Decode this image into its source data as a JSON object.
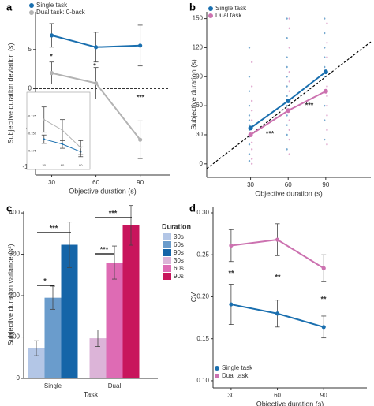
{
  "chart_data": [
    {
      "type": "line",
      "panel": "a",
      "xlabel": "Objective duration (s)",
      "ylabel": "Subjective duration deviation (s)",
      "x": [
        30,
        60,
        90
      ],
      "xlim": [
        19,
        110
      ],
      "ylim": [
        -11,
        9.8
      ],
      "xticks": [
        30,
        60,
        90
      ],
      "yticks": [
        -10,
        -5,
        0,
        5
      ],
      "hline": 0,
      "legend": "top-left",
      "series": [
        {
          "name": "Single task",
          "color": "#1a6faf",
          "values": [
            6.8,
            5.3,
            5.5
          ],
          "errors": [
            1.5,
            1.9,
            2.6
          ]
        },
        {
          "name": "Dual task: 0-back",
          "color": "#b3b3b3",
          "values": [
            2.0,
            0.7,
            -6.5
          ],
          "errors": [
            1.4,
            2.0,
            2.4
          ]
        }
      ],
      "annotations": [
        "*",
        "*",
        "***"
      ],
      "inset": {
        "x": [
          30,
          60,
          90
        ],
        "xlim": [
          20,
          100
        ],
        "ylim": [
          -0.19,
          -0.1
        ],
        "xticks": [
          30,
          60,
          90
        ],
        "yticks": [
          {
            "value": -0.125,
            "label": "-0.125"
          },
          {
            "value": -0.15,
            "label": "-0.150"
          },
          {
            "value": -0.175,
            "label": "-0.175"
          }
        ],
        "series": [
          {
            "color": "#1a6faf",
            "values": [
              -0.158,
              -0.165,
              -0.176
            ],
            "errors": [
              0.006,
              0.006,
              0.007
            ]
          },
          {
            "color": "#b3b3b3",
            "values": [
              -0.13,
              -0.145,
              -0.17
            ],
            "errors": [
              0.018,
              0.015,
              0.01
            ]
          }
        ]
      }
    },
    {
      "type": "scatter",
      "panel": "b",
      "xlabel": "Objective duration (s)",
      "ylabel": "Subjective duration (s)",
      "x": [
        30,
        60,
        90
      ],
      "xlim": [
        -5,
        126
      ],
      "ylim": [
        -14,
        157
      ],
      "xticks": [
        30,
        60,
        90
      ],
      "yticks": [
        0,
        30,
        60,
        90,
        120,
        150
      ],
      "legend": "top-left",
      "series": [
        {
          "name": "Single task",
          "color": "#1a6faf",
          "values": [
            37,
            65,
            95
          ],
          "points": {
            "x": [
              29,
              29,
              29,
              29,
              29,
              29,
              29,
              29,
              29,
              29,
              29,
              29,
              59,
              59,
              59,
              59,
              59,
              59,
              59,
              59,
              59,
              59,
              59,
              59,
              89,
              89,
              89,
              89,
              89,
              89,
              89,
              89,
              89,
              89
            ],
            "y": [
              3,
              10,
              20,
              28,
              35,
              40,
              45,
              50,
              60,
              75,
              90,
              120,
              15,
              30,
              40,
              50,
              60,
              70,
              80,
              90,
              100,
              110,
              130,
              150,
              25,
              45,
              60,
              75,
              90,
              100,
              110,
              120,
              135,
              150
            ]
          }
        },
        {
          "name": "Dual task",
          "color": "#cc72b0",
          "values": [
            30,
            55,
            75
          ],
          "points": {
            "x": [
              31,
              31,
              31,
              31,
              31,
              31,
              31,
              31,
              31,
              31,
              31,
              61,
              61,
              61,
              61,
              61,
              61,
              61,
              61,
              61,
              61,
              61,
              61,
              91,
              91,
              91,
              91,
              91,
              91,
              91,
              91,
              91,
              91
            ],
            "y": [
              0,
              5,
              15,
              22,
              30,
              38,
              45,
              55,
              65,
              80,
              105,
              10,
              25,
              35,
              45,
              55,
              65,
              75,
              85,
              95,
              120,
              140,
              150,
              20,
              35,
              50,
              60,
              70,
              80,
              95,
              110,
              125,
              145
            ]
          }
        }
      ],
      "annotations": [
        "***",
        "***"
      ]
    },
    {
      "type": "bar",
      "panel": "c",
      "xlabel": "Task",
      "ylabel": "Subjective duration variance (s²)",
      "categories": [
        "Single",
        "Dual"
      ],
      "ylim": [
        0,
        404
      ],
      "yticks": [
        0,
        100,
        200,
        300,
        400
      ],
      "legend_title": "Duration",
      "series": [
        {
          "name": "30s",
          "color": "#b3c6e6",
          "values": [
            73,
            null
          ],
          "errors": [
            18,
            null
          ]
        },
        {
          "name": "60s",
          "color": "#6a9ccc",
          "values": [
            195,
            null
          ],
          "errors": [
            28,
            null
          ]
        },
        {
          "name": "90s",
          "color": "#1565a8",
          "values": [
            323,
            null
          ],
          "errors": [
            55,
            null
          ]
        },
        {
          "name": "30s",
          "color": "#dcb4d8",
          "values": [
            null,
            97
          ],
          "errors": [
            null,
            20
          ]
        },
        {
          "name": "60s",
          "color": "#de6bb4",
          "values": [
            null,
            280
          ],
          "errors": [
            null,
            40
          ]
        },
        {
          "name": "90s",
          "color": "#c8155c",
          "values": [
            null,
            370
          ],
          "errors": [
            null,
            48
          ]
        }
      ],
      "annotations": [
        "*",
        "***",
        "***",
        "***"
      ]
    },
    {
      "type": "line",
      "panel": "d",
      "xlabel": "Objective duration (s)",
      "ylabel": "CV",
      "x": [
        30,
        60,
        90
      ],
      "xlim": [
        18.3,
        118
      ],
      "ylim": [
        0.0915,
        0.3075
      ],
      "xticks": [
        30,
        60,
        90
      ],
      "yticks": [
        {
          "value": 0.1,
          "label": "0.10"
        },
        {
          "value": 0.15,
          "label": "0.15"
        },
        {
          "value": 0.2,
          "label": "0.20"
        },
        {
          "value": 0.25,
          "label": "0.25"
        },
        {
          "value": 0.3,
          "label": "0.30"
        }
      ],
      "legend": "bottom-left",
      "series": [
        {
          "name": "Single task",
          "color": "#1a6faf",
          "values": [
            0.191,
            0.18,
            0.164
          ],
          "errors": [
            0.024,
            0.016,
            0.013
          ]
        },
        {
          "name": "Dual task",
          "color": "#cc72b0",
          "values": [
            0.261,
            0.268,
            0.234
          ],
          "errors": [
            0.019,
            0.019,
            0.016
          ]
        }
      ],
      "annotations": [
        "**",
        "**",
        "**"
      ]
    }
  ]
}
